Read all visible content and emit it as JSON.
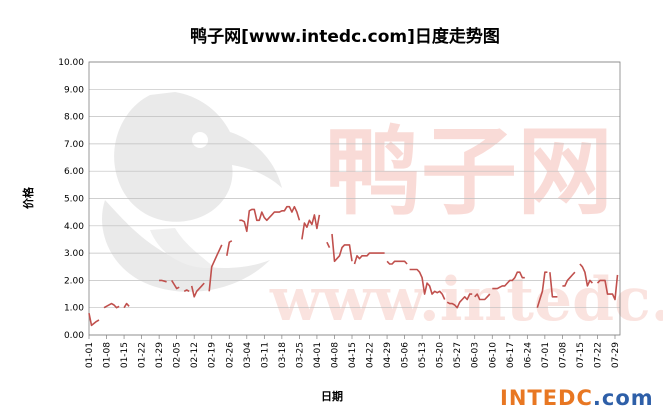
{
  "chart_data": {
    "type": "line",
    "title": "鸭子网[www.intedc.com]日度走势图",
    "xlabel": "日期",
    "ylabel": "价格",
    "ylim": [
      0,
      10
    ],
    "y_ticks": [
      "0.00",
      "1.00",
      "2.00",
      "3.00",
      "4.00",
      "5.00",
      "6.00",
      "7.00",
      "8.00",
      "9.00",
      "10.00"
    ],
    "x_tick_labels": [
      "01-01",
      "01-08",
      "01-15",
      "01-22",
      "01-29",
      "02-05",
      "02-12",
      "02-19",
      "02-26",
      "03-04",
      "03-11",
      "03-18",
      "03-25",
      "04-01",
      "04-08",
      "04-15",
      "04-22",
      "04-29",
      "05-06",
      "05-13",
      "05-20",
      "05-27",
      "06-03",
      "06-10",
      "06-17",
      "06-24",
      "07-01",
      "07-08",
      "07-15",
      "07-22",
      "07-29"
    ],
    "grid": true,
    "legend": "none",
    "series_color": "#c0504d",
    "segments": [
      {
        "x": [
          "01-01",
          "01-02",
          "01-04",
          "01-05"
        ],
        "y": [
          0.8,
          0.35,
          0.5,
          0.55
        ]
      },
      {
        "x": [
          "01-07",
          "01-08",
          "01-10",
          "01-11",
          "01-12",
          "01-13"
        ],
        "y": [
          1.0,
          1.05,
          1.15,
          1.1,
          1.0,
          1.05
        ]
      },
      {
        "x": [
          "01-15",
          "01-16",
          "01-17"
        ],
        "y": [
          1.0,
          1.15,
          1.05
        ]
      },
      {
        "x": [
          "01-29",
          "01-30",
          "02-01"
        ],
        "y": [
          2.0,
          2.0,
          1.95
        ]
      },
      {
        "x": [
          "02-03",
          "02-04",
          "02-05",
          "02-06"
        ],
        "y": [
          2.0,
          1.85,
          1.7,
          1.75
        ]
      },
      {
        "x": [
          "02-08",
          "02-09",
          "02-10"
        ],
        "y": [
          1.6,
          1.65,
          1.6
        ]
      },
      {
        "x": [
          "02-11",
          "02-12",
          "02-13",
          "02-15",
          "02-16"
        ],
        "y": [
          1.8,
          1.4,
          1.6,
          1.8,
          1.9
        ]
      },
      {
        "x": [
          "02-18",
          "02-19",
          "02-20",
          "02-21",
          "02-22",
          "02-23"
        ],
        "y": [
          1.6,
          2.5,
          2.7,
          2.9,
          3.1,
          3.3
        ]
      },
      {
        "x": [
          "02-25",
          "02-26",
          "02-27"
        ],
        "y": [
          2.9,
          3.4,
          3.45
        ]
      },
      {
        "x": [
          "03-01",
          "03-02",
          "03-03",
          "03-04",
          "03-05",
          "03-06",
          "03-07",
          "03-08",
          "03-09",
          "03-10",
          "03-11",
          "03-12",
          "03-13",
          "03-14",
          "03-15",
          "03-16",
          "03-17",
          "03-18",
          "03-19",
          "03-20",
          "03-21",
          "03-22",
          "03-23",
          "03-24",
          "03-25"
        ],
        "y": [
          4.2,
          4.2,
          4.15,
          3.8,
          4.55,
          4.6,
          4.6,
          4.2,
          4.2,
          4.5,
          4.3,
          4.2,
          4.3,
          4.4,
          4.5,
          4.5,
          4.5,
          4.55,
          4.55,
          4.7,
          4.7,
          4.5,
          4.7,
          4.5,
          4.2
        ]
      },
      {
        "x": [
          "03-26",
          "03-27",
          "03-28",
          "03-29",
          "03-30",
          "03-31",
          "04-01",
          "04-02"
        ],
        "y": [
          3.5,
          4.1,
          3.95,
          4.2,
          4.05,
          4.4,
          3.9,
          4.4
        ]
      },
      {
        "x": [
          "04-05",
          "04-06"
        ],
        "y": [
          3.4,
          3.2
        ]
      },
      {
        "x": [
          "04-07",
          "04-08",
          "04-09",
          "04-10",
          "04-11",
          "04-12",
          "04-13",
          "04-14",
          "04-15"
        ],
        "y": [
          3.7,
          2.7,
          2.8,
          2.9,
          3.2,
          3.3,
          3.3,
          3.3,
          2.7
        ]
      },
      {
        "x": [
          "04-16",
          "04-17",
          "04-18",
          "04-19",
          "04-20",
          "04-21",
          "04-22",
          "04-23",
          "04-24",
          "04-25",
          "04-26",
          "04-27",
          "04-28"
        ],
        "y": [
          2.6,
          2.9,
          2.8,
          2.9,
          2.9,
          2.9,
          3.0,
          3.0,
          3.0,
          3.0,
          3.0,
          3.0,
          3.0
        ]
      },
      {
        "x": [
          "04-29",
          "04-30",
          "05-01",
          "05-02",
          "05-03",
          "05-04",
          "05-05",
          "05-06",
          "05-07"
        ],
        "y": [
          2.7,
          2.6,
          2.6,
          2.7,
          2.7,
          2.7,
          2.7,
          2.7,
          2.6
        ]
      },
      {
        "x": [
          "05-08",
          "05-09",
          "05-10",
          "05-11",
          "05-12",
          "05-13",
          "05-14",
          "05-15",
          "05-16",
          "05-17",
          "05-18",
          "05-19",
          "05-20",
          "05-21",
          "05-22"
        ],
        "y": [
          2.4,
          2.4,
          2.4,
          2.4,
          2.3,
          2.1,
          1.5,
          1.9,
          1.8,
          1.5,
          1.6,
          1.55,
          1.6,
          1.5,
          1.3
        ]
      },
      {
        "x": [
          "05-23",
          "05-24",
          "05-25",
          "05-26",
          "05-27",
          "05-28",
          "05-29",
          "05-30",
          "05-31",
          "06-01",
          "06-02"
        ],
        "y": [
          1.2,
          1.15,
          1.15,
          1.1,
          1.0,
          1.2,
          1.3,
          1.4,
          1.3,
          1.5,
          1.5
        ]
      },
      {
        "x": [
          "06-03",
          "06-04",
          "06-05",
          "06-06",
          "06-07",
          "06-08",
          "06-09"
        ],
        "y": [
          1.4,
          1.5,
          1.3,
          1.3,
          1.3,
          1.4,
          1.5
        ]
      },
      {
        "x": [
          "06-10",
          "06-11",
          "06-12",
          "06-13",
          "06-14",
          "06-15",
          "06-16",
          "06-17",
          "06-18",
          "06-19",
          "06-20",
          "06-21",
          "06-22",
          "06-23"
        ],
        "y": [
          1.7,
          1.7,
          1.7,
          1.75,
          1.8,
          1.8,
          1.9,
          2.0,
          2.0,
          2.1,
          2.3,
          2.3,
          2.1,
          2.1
        ]
      },
      {
        "x": [
          "06-28",
          "06-29",
          "06-30",
          "07-01",
          "07-02"
        ],
        "y": [
          1.0,
          1.3,
          1.6,
          2.3,
          2.3
        ]
      },
      {
        "x": [
          "07-03",
          "07-04",
          "07-05",
          "07-06"
        ],
        "y": [
          2.3,
          1.4,
          1.4,
          1.4
        ]
      },
      {
        "x": [
          "07-08",
          "07-09",
          "07-10",
          "07-11",
          "07-12",
          "07-13"
        ],
        "y": [
          1.8,
          1.8,
          2.0,
          2.1,
          2.2,
          2.3
        ]
      },
      {
        "x": [
          "07-15",
          "07-16",
          "07-17",
          "07-18",
          "07-19",
          "07-20"
        ],
        "y": [
          2.6,
          2.5,
          2.3,
          1.8,
          2.0,
          1.9
        ]
      },
      {
        "x": [
          "07-22",
          "07-23",
          "07-24",
          "07-25",
          "07-26",
          "07-27",
          "07-28",
          "07-29",
          "07-30"
        ],
        "y": [
          1.9,
          2.0,
          2.0,
          2.0,
          1.5,
          1.5,
          1.5,
          1.3,
          2.2
        ]
      }
    ]
  },
  "watermark": {
    "site_text": "www.intedc.com",
    "cn_text": "鸭子网"
  },
  "brand": {
    "text": "INTEDC.com",
    "color_primary": "#e87722",
    "color_secondary": "#2e5fa8"
  }
}
